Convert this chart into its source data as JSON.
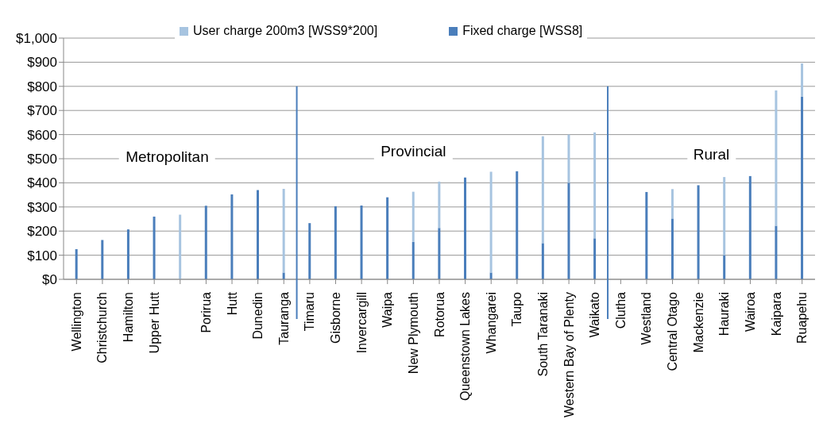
{
  "chart_data": {
    "type": "bar",
    "stacked": true,
    "categories": [
      "Wellington",
      "Christchurch",
      "Hamilton",
      "Upper Hutt",
      null,
      "Porirua",
      "Hutt",
      "Dunedin",
      "Tauranga",
      "Timaru",
      "Gisborne",
      "Invercargill",
      "Waipa",
      "New Plymouth",
      "Rotorua",
      "Queenstown Lakes",
      "Whangarei",
      "Taupo",
      "South Taranaki",
      "Western Bay of Plenty",
      "Waikato",
      "Clutha",
      "Westland",
      "Central Otago",
      "Mackenzie",
      "Hauraki",
      "Wairoa",
      "Kaipara",
      "Ruapehu"
    ],
    "series": [
      {
        "name": "Fixed charge [WSS8]",
        "color": "#4a7ebb",
        "values": [
          125,
          163,
          207,
          260,
          0,
          305,
          352,
          370,
          28,
          233,
          303,
          306,
          340,
          155,
          213,
          422,
          28,
          448,
          150,
          400,
          170,
          null,
          362,
          252,
          390,
          100,
          428,
          222,
          757
        ]
      },
      {
        "name": "User charge 200m3 [WSS9*200]",
        "color": "#a7c4e0",
        "values": [
          0,
          0,
          0,
          0,
          268,
          0,
          0,
          0,
          347,
          0,
          0,
          0,
          0,
          208,
          192,
          0,
          418,
          0,
          443,
          200,
          439,
          null,
          0,
          122,
          0,
          324,
          0,
          561,
          138
        ]
      }
    ],
    "ylim": [
      0,
      1000
    ],
    "yticks": [
      {
        "value": 0,
        "label": "$0"
      },
      {
        "value": 100,
        "label": "$100"
      },
      {
        "value": 200,
        "label": "$200"
      },
      {
        "value": 300,
        "label": "$300"
      },
      {
        "value": 400,
        "label": "$400"
      },
      {
        "value": 500,
        "label": "$500"
      },
      {
        "value": 600,
        "label": "$600"
      },
      {
        "value": 700,
        "label": "$700"
      },
      {
        "value": 800,
        "label": "$800"
      },
      {
        "value": 900,
        "label": "$900"
      },
      {
        "value": 1000,
        "label": "$1,000"
      }
    ],
    "grid": "y",
    "legend": "top",
    "annotations": [
      "Metropolitan",
      "Provincial",
      "Rural"
    ]
  }
}
